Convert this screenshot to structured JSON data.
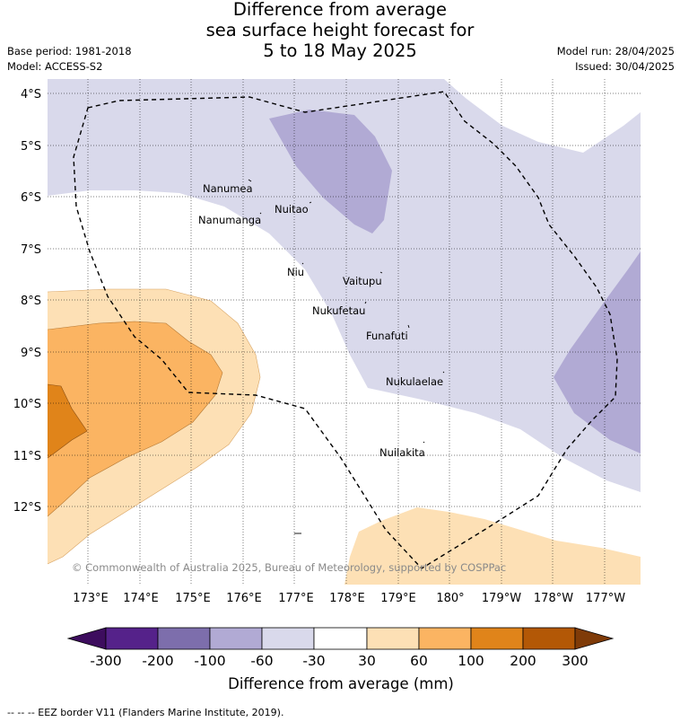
{
  "title": {
    "line1": "Difference from average",
    "line2": "sea surface height forecast for",
    "line3": "5 to 18 May 2025"
  },
  "meta_left": {
    "base_period": "Base period: 1981-2018",
    "model": "Model: ACCESS-S2"
  },
  "meta_right": {
    "model_run": "Model run: 28/04/2025",
    "issued": "Issued: 30/04/2025"
  },
  "latitude_labels": [
    "4°S",
    "5°S",
    "6°S",
    "7°S",
    "8°S",
    "9°S",
    "10°S",
    "11°S",
    "12°S"
  ],
  "longitude_labels": [
    "173°E",
    "174°E",
    "175°E",
    "176°E",
    "177°E",
    "178°E",
    "179°E",
    "180°",
    "179°W",
    "178°W",
    "177°W"
  ],
  "places": [
    {
      "name": "Nanumea"
    },
    {
      "name": "Nuitao"
    },
    {
      "name": "Nanumanga"
    },
    {
      "name": "Niu"
    },
    {
      "name": "Vaitupu"
    },
    {
      "name": "Nukufetau"
    },
    {
      "name": "Funafuti"
    },
    {
      "name": "Nukulaelae"
    },
    {
      "name": "Nuilakita"
    }
  ],
  "copyright": "© Commonwealth of Australia 2025, Bureau of Meteorology, supported by COSPPac",
  "colorbar": {
    "ticks": [
      "-300",
      "-200",
      "-100",
      "-60",
      "-30",
      "30",
      "60",
      "100",
      "200",
      "300"
    ],
    "label": "Difference from average (mm)",
    "colors": [
      "#3d0d5e",
      "#55228a",
      "#7d6eac",
      "#b1aad4",
      "#d9d9eb",
      "#ffffff",
      "#fde0b5",
      "#fbb462",
      "#e0841a",
      "#b35806",
      "#7f3b08"
    ]
  },
  "footer": "--  --  -- EEZ border V11 (Flanders Marine Institute, 2019)."
}
